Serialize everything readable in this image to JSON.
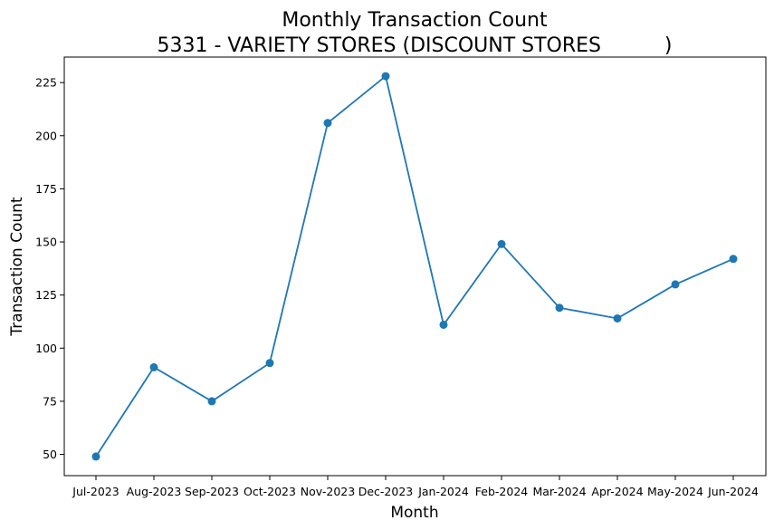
{
  "chart_data": {
    "type": "line",
    "title": "Monthly Transaction Count",
    "subtitle": "5331 - VARIETY STORES (DISCOUNT STORES          )",
    "xlabel": "Month",
    "ylabel": "Transaction Count",
    "categories": [
      "Jul-2023",
      "Aug-2023",
      "Sep-2023",
      "Oct-2023",
      "Nov-2023",
      "Dec-2023",
      "Jan-2024",
      "Feb-2024",
      "Mar-2024",
      "Apr-2024",
      "May-2024",
      "Jun-2024"
    ],
    "values": [
      49,
      91,
      75,
      93,
      206,
      228,
      111,
      149,
      119,
      114,
      130,
      142
    ],
    "yticks": [
      "50",
      "75",
      "100",
      "125",
      "150",
      "175",
      "200",
      "225"
    ],
    "ylim": [
      40,
      237
    ],
    "grid": false,
    "color": "#1f77b4",
    "marker": "circle"
  }
}
